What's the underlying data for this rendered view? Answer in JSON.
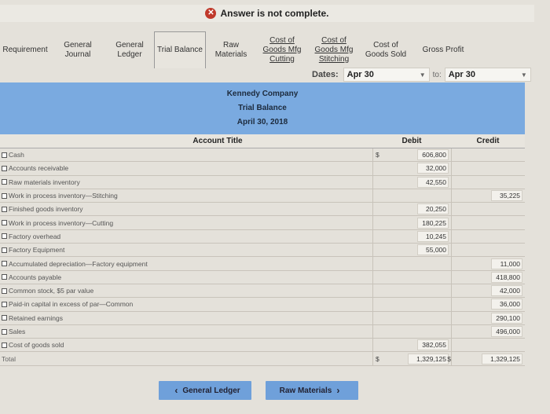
{
  "banner": {
    "icon": "x-circle-icon",
    "text": "Answer is not complete."
  },
  "tabs": [
    {
      "label": "Requirement",
      "active": false
    },
    {
      "label": "General\nJournal",
      "active": false
    },
    {
      "label": "General\nLedger",
      "active": false
    },
    {
      "label": "Trial Balance",
      "active": true
    },
    {
      "label": "Raw\nMaterials",
      "active": false
    },
    {
      "label": "Cost of\nGoods Mfg\nCutting",
      "active": false
    },
    {
      "label": "Cost of\nGoods Mfg\nStitching",
      "active": false
    },
    {
      "label": "Cost of\nGoods Sold",
      "active": false
    },
    {
      "label": "Gross Profit",
      "active": false
    }
  ],
  "dates": {
    "label": "Dates:",
    "from": "Apr 30",
    "to_label": "to:",
    "to": "Apr 30"
  },
  "header": {
    "company": "Kennedy Company",
    "report": "Trial Balance",
    "date": "April 30, 2018"
  },
  "columns": {
    "title": "Account Title",
    "debit": "Debit",
    "credit": "Credit"
  },
  "rows": [
    {
      "title": "Cash",
      "dollar": "$",
      "debit": "606,800",
      "credit": ""
    },
    {
      "title": "Accounts receivable",
      "dollar": "",
      "debit": "32,000",
      "credit": ""
    },
    {
      "title": "Raw materials inventory",
      "dollar": "",
      "debit": "42,550",
      "credit": ""
    },
    {
      "title": "Work in process inventory—Stitching",
      "dollar": "",
      "debit": "",
      "credit": "35,225"
    },
    {
      "title": "Finished goods inventory",
      "dollar": "",
      "debit": "20,250",
      "credit": ""
    },
    {
      "title": "Work in process inventory—Cutting",
      "dollar": "",
      "debit": "180,225",
      "credit": ""
    },
    {
      "title": "Factory overhead",
      "dollar": "",
      "debit": "10,245",
      "credit": ""
    },
    {
      "title": "Factory Equipment",
      "dollar": "",
      "debit": "55,000",
      "credit": ""
    },
    {
      "title": "Accumulated depreciation—Factory equipment",
      "dollar": "",
      "debit": "",
      "credit": "11,000"
    },
    {
      "title": "Accounts payable",
      "dollar": "",
      "debit": "",
      "credit": "418,800"
    },
    {
      "title": "Common stock, $5 par value",
      "dollar": "",
      "debit": "",
      "credit": "42,000"
    },
    {
      "title": "Paid-in capital in excess of par—Common",
      "dollar": "",
      "debit": "",
      "credit": "36,000"
    },
    {
      "title": "Retained earnings",
      "dollar": "",
      "debit": "",
      "credit": "290,100"
    },
    {
      "title": "Sales",
      "dollar": "",
      "debit": "",
      "credit": "496,000"
    },
    {
      "title": "Cost of goods sold",
      "dollar": "",
      "debit": "382,055",
      "credit": ""
    }
  ],
  "total": {
    "title": "Total",
    "dollar": "$",
    "debit": "1,329,125",
    "credit_dollar": "$",
    "credit": "1,329,125"
  },
  "nav": {
    "prev": "General Ledger",
    "next": "Raw Materials"
  }
}
